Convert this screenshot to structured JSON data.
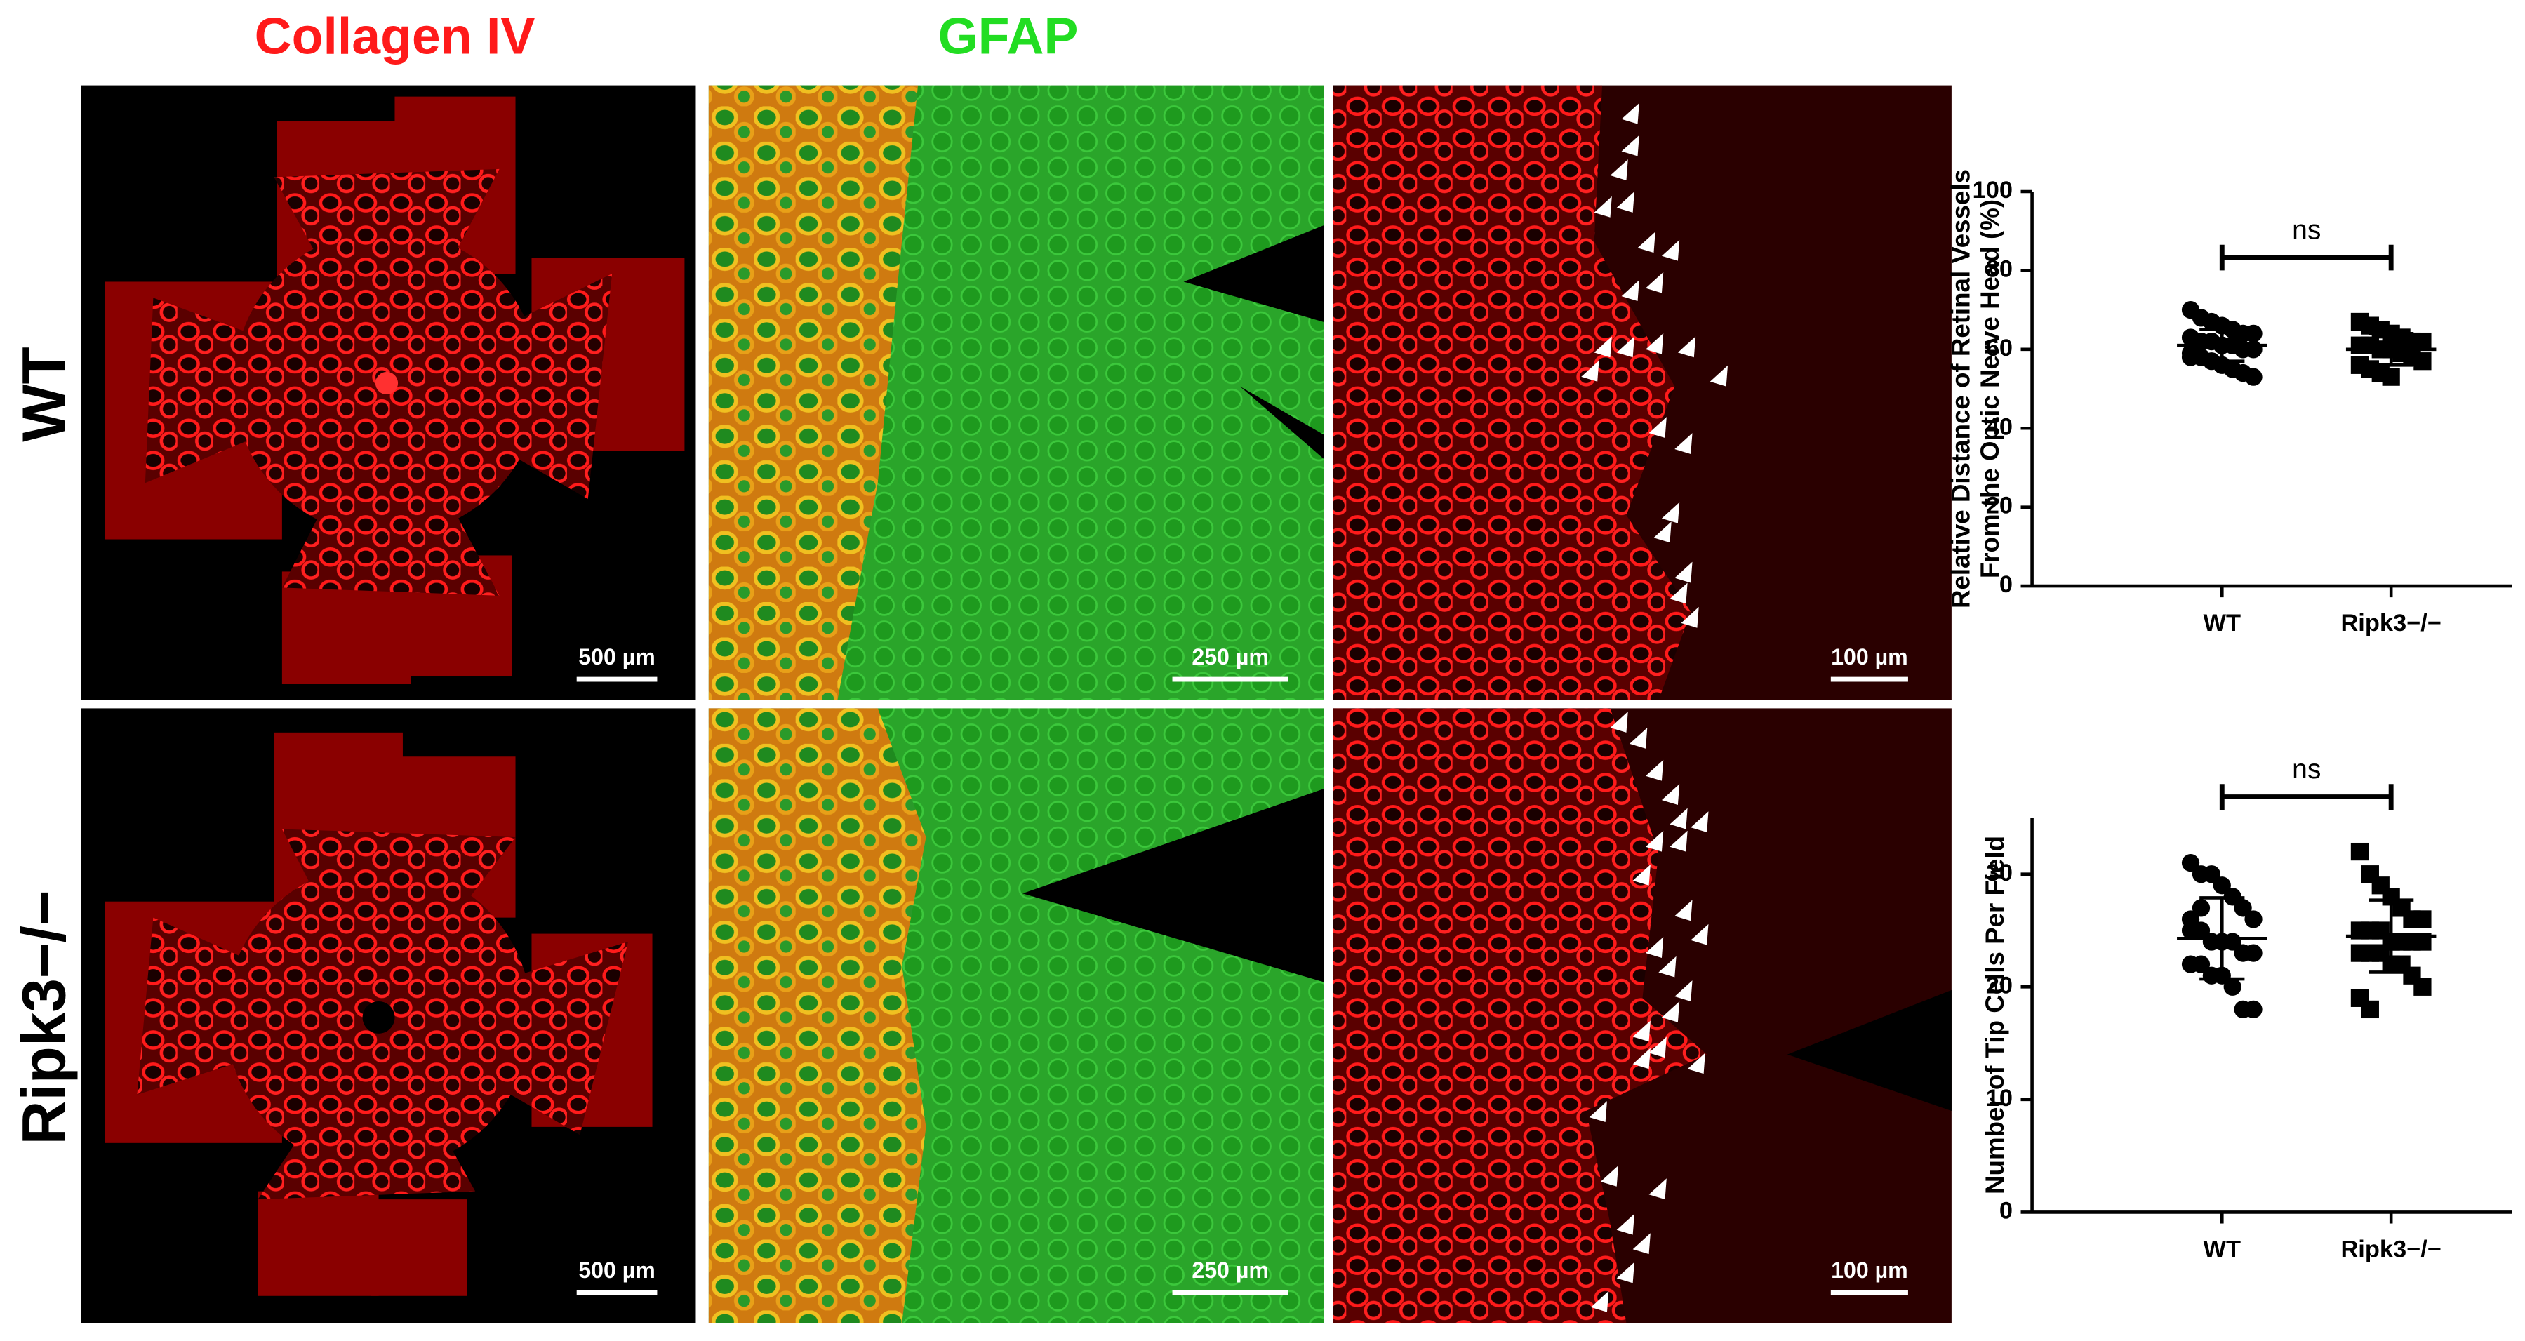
{
  "figure": {
    "column_titles": [
      "Collagen IV",
      "GFAP"
    ],
    "row_labels": [
      "WT",
      "Ripk3−/−"
    ],
    "scale_bars": [
      [
        "500 µm",
        "250 µm",
        "100 µm"
      ],
      [
        "500 µm",
        "250 µm",
        "100 µm"
      ]
    ]
  },
  "chart_data": [
    {
      "type": "scatter",
      "y_label": [
        "Relative Distance of Retinal Vessels",
        "From the Optic Nerve Head (%)"
      ],
      "categories": [
        "WT",
        "Ripk3−/−"
      ],
      "annotation": "ns",
      "ylim": [
        0,
        100
      ],
      "yticks": [
        0,
        20,
        40,
        60,
        80,
        100
      ],
      "groups": [
        {
          "marker": "circle",
          "mean": 61,
          "sd": 4,
          "values": [
            70,
            68,
            67,
            66,
            65,
            64,
            64,
            63,
            62,
            62,
            61,
            61,
            60,
            60,
            59,
            58,
            57,
            56,
            55,
            54,
            53,
            58
          ]
        },
        {
          "marker": "square",
          "mean": 60,
          "sd": 4,
          "values": [
            67,
            66,
            65,
            64,
            63,
            62,
            62,
            61,
            61,
            60,
            60,
            59,
            58,
            57,
            56,
            55,
            54,
            53,
            62,
            59
          ]
        }
      ]
    },
    {
      "type": "scatter",
      "y_label": [
        "Number of Tip Cells Per Field"
      ],
      "categories": [
        "WT",
        "Ripk3−/−"
      ],
      "annotation": "ns",
      "ylim": [
        0,
        35
      ],
      "yticks": [
        0,
        10,
        20,
        30
      ],
      "groups": [
        {
          "marker": "circle",
          "mean": 24.3,
          "sd": 3.6,
          "values": [
            31,
            30,
            30,
            29,
            28,
            27,
            26,
            25,
            25,
            24,
            24,
            24,
            23,
            23,
            22,
            22,
            21,
            21,
            20,
            18,
            18,
            26,
            27
          ]
        },
        {
          "marker": "square",
          "mean": 24.5,
          "sd": 3.2,
          "values": [
            32,
            30,
            29,
            28,
            27,
            26,
            26,
            25,
            25,
            25,
            24,
            24,
            24,
            24,
            23,
            23,
            23,
            22,
            22,
            21,
            20,
            19,
            18
          ]
        }
      ]
    }
  ]
}
